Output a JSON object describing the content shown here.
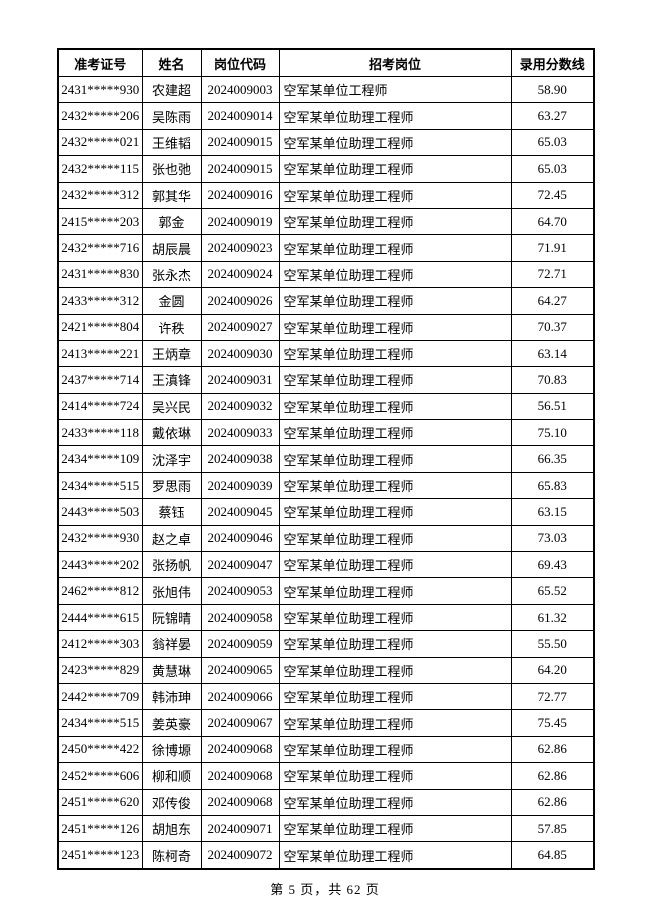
{
  "page": {
    "footer": "第 5 页，共 62 页"
  },
  "table": {
    "columns": [
      "准考证号",
      "姓名",
      "岗位代码",
      "招考岗位",
      "录用分数线"
    ],
    "rows": [
      [
        "2431*****930",
        "农建超",
        "2024009003",
        "空军某单位工程师",
        "58.90"
      ],
      [
        "2432*****206",
        "吴陈雨",
        "2024009014",
        "空军某单位助理工程师",
        "63.27"
      ],
      [
        "2432*****021",
        "王维韬",
        "2024009015",
        "空军某单位助理工程师",
        "65.03"
      ],
      [
        "2432*****115",
        "张也弛",
        "2024009015",
        "空军某单位助理工程师",
        "65.03"
      ],
      [
        "2432*****312",
        "郭其华",
        "2024009016",
        "空军某单位助理工程师",
        "72.45"
      ],
      [
        "2415*****203",
        "郭金",
        "2024009019",
        "空军某单位助理工程师",
        "64.70"
      ],
      [
        "2432*****716",
        "胡辰晨",
        "2024009023",
        "空军某单位助理工程师",
        "71.91"
      ],
      [
        "2431*****830",
        "张永杰",
        "2024009024",
        "空军某单位助理工程师",
        "72.71"
      ],
      [
        "2433*****312",
        "金圆",
        "2024009026",
        "空军某单位助理工程师",
        "64.27"
      ],
      [
        "2421*****804",
        "许秩",
        "2024009027",
        "空军某单位助理工程师",
        "70.37"
      ],
      [
        "2413*****221",
        "王炳章",
        "2024009030",
        "空军某单位助理工程师",
        "63.14"
      ],
      [
        "2437*****714",
        "王滇锋",
        "2024009031",
        "空军某单位助理工程师",
        "70.83"
      ],
      [
        "2414*****724",
        "吴兴民",
        "2024009032",
        "空军某单位助理工程师",
        "56.51"
      ],
      [
        "2433*****118",
        "戴依琳",
        "2024009033",
        "空军某单位助理工程师",
        "75.10"
      ],
      [
        "2434*****109",
        "沈泽宇",
        "2024009038",
        "空军某单位助理工程师",
        "66.35"
      ],
      [
        "2434*****515",
        "罗思雨",
        "2024009039",
        "空军某单位助理工程师",
        "65.83"
      ],
      [
        "2443*****503",
        "蔡钰",
        "2024009045",
        "空军某单位助理工程师",
        "63.15"
      ],
      [
        "2432*****930",
        "赵之卓",
        "2024009046",
        "空军某单位助理工程师",
        "73.03"
      ],
      [
        "2443*****202",
        "张扬帆",
        "2024009047",
        "空军某单位助理工程师",
        "69.43"
      ],
      [
        "2462*****812",
        "张旭伟",
        "2024009053",
        "空军某单位助理工程师",
        "65.52"
      ],
      [
        "2444*****615",
        "阮锦晴",
        "2024009058",
        "空军某单位助理工程师",
        "61.32"
      ],
      [
        "2412*****303",
        "翁祥晏",
        "2024009059",
        "空军某单位助理工程师",
        "55.50"
      ],
      [
        "2423*****829",
        "黄慧琳",
        "2024009065",
        "空军某单位助理工程师",
        "64.20"
      ],
      [
        "2442*****709",
        "韩沛珅",
        "2024009066",
        "空军某单位助理工程师",
        "72.77"
      ],
      [
        "2434*****515",
        "姜英豪",
        "2024009067",
        "空军某单位助理工程师",
        "75.45"
      ],
      [
        "2450*****422",
        "徐博塬",
        "2024009068",
        "空军某单位助理工程师",
        "62.86"
      ],
      [
        "2452*****606",
        "柳和顺",
        "2024009068",
        "空军某单位助理工程师",
        "62.86"
      ],
      [
        "2451*****620",
        "邓传俊",
        "2024009068",
        "空军某单位助理工程师",
        "62.86"
      ],
      [
        "2451*****126",
        "胡旭东",
        "2024009071",
        "空军某单位助理工程师",
        "57.85"
      ],
      [
        "2451*****123",
        "陈柯奇",
        "2024009072",
        "空军某单位助理工程师",
        "64.85"
      ]
    ]
  }
}
